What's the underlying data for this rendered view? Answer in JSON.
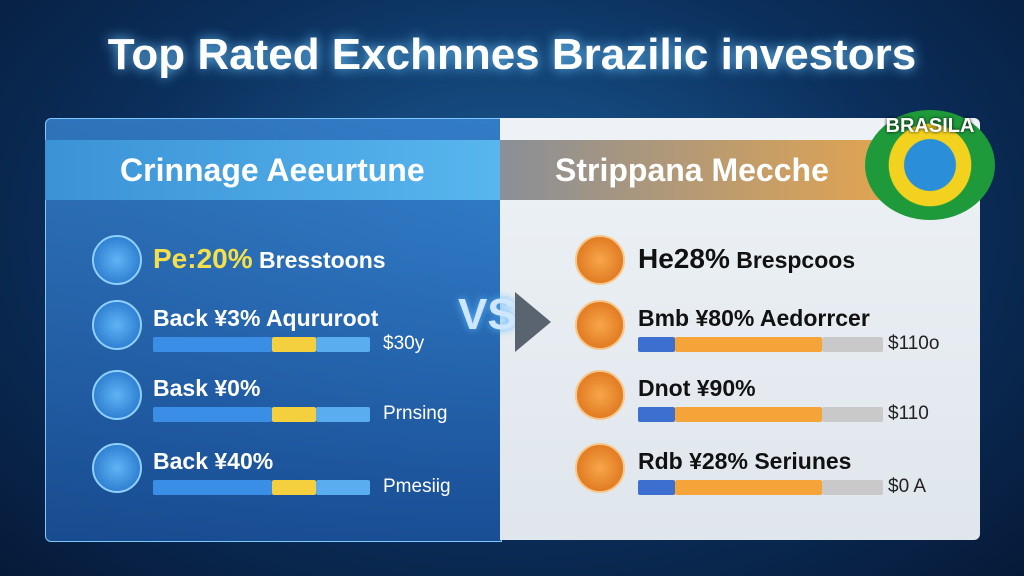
{
  "title": "Top Rated Exchnnes Brazilic investors",
  "vs": "VS",
  "badge": "BRASILA",
  "left": {
    "header": "Crinnage Aeeurtune",
    "rows": [
      {
        "highlight": "Pe:20%",
        "text": "Bresstoons"
      },
      {
        "text": "Back ¥3% Aqururoot",
        "bar_label": "$30y"
      },
      {
        "text": "Bask ¥0%",
        "bar_label": "Prnsing"
      },
      {
        "text": "Back ¥40%",
        "bar_label": "Pmesiig"
      }
    ]
  },
  "right": {
    "header": "Strippana Mecche",
    "rows": [
      {
        "highlight": "He28%",
        "text": "Brespcoos"
      },
      {
        "text": "Bmb ¥80% Aedorrcer",
        "bar_label": "$110o"
      },
      {
        "text": "Dnot ¥90%",
        "bar_label": "$110"
      },
      {
        "text": "Rdb ¥28% Seriunes",
        "bar_label": "$0 A"
      }
    ]
  }
}
